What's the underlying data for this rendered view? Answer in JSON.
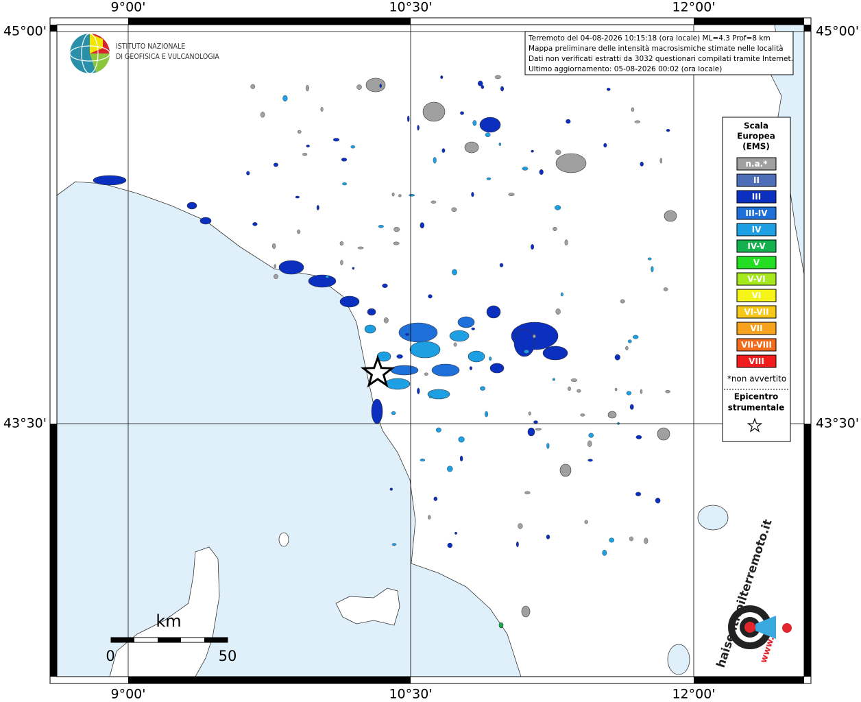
{
  "map": {
    "top_labels": [
      "9°00'",
      "10°30'",
      "12°00'"
    ],
    "bottom_labels": [
      "9°00'",
      "10°30'",
      "12°00'"
    ],
    "left_labels": [
      "45°00'",
      "43°30'"
    ],
    "right_labels": [
      "45°00'",
      "43°30'"
    ],
    "institute": [
      "ISTITUTO NAZIONALE",
      "DI GEOFISICA E VULCANOLOGIA"
    ],
    "info": [
      "Terremoto del 04-08-2026 10:15:18 (ora locale) ML=4.3 Prof=8 km",
      "Mappa preliminare delle intensità macrosismiche stimate nelle località",
      "Dati non verificati estratti da 3032 questionari compilati tramite Internet.",
      "Ultimo aggiornamento: 05-08-2026 00:02 (ora locale)"
    ],
    "legend": {
      "title": [
        "Scala",
        "Europea",
        "(EMS)"
      ],
      "classes": [
        {
          "label": "n.a.*",
          "color": "#a0a0a0"
        },
        {
          "label": "II",
          "color": "#4f6eb8"
        },
        {
          "label": "III",
          "color": "#0b2fbf"
        },
        {
          "label": "III-IV",
          "color": "#1f6fd8"
        },
        {
          "label": "IV",
          "color": "#1e9ee3"
        },
        {
          "label": "IV-V",
          "color": "#16b14f"
        },
        {
          "label": "V",
          "color": "#22dd22"
        },
        {
          "label": "V-VI",
          "color": "#a6e81e"
        },
        {
          "label": "VI",
          "color": "#f5f51a"
        },
        {
          "label": "VI-VII",
          "color": "#f5c81a"
        },
        {
          "label": "VII",
          "color": "#f7a21c"
        },
        {
          "label": "VII-VIII",
          "color": "#f36c1d"
        },
        {
          "label": "VIII",
          "color": "#f21c1c"
        }
      ],
      "note": "*non avvertito",
      "epicenter": [
        "Epicentro",
        "strumentale"
      ]
    },
    "scale_bar": {
      "unit": "km",
      "labels": [
        "0",
        "50"
      ]
    },
    "logo": {
      "site": "haisentitoilterremoto.it",
      "www": "www."
    }
  }
}
